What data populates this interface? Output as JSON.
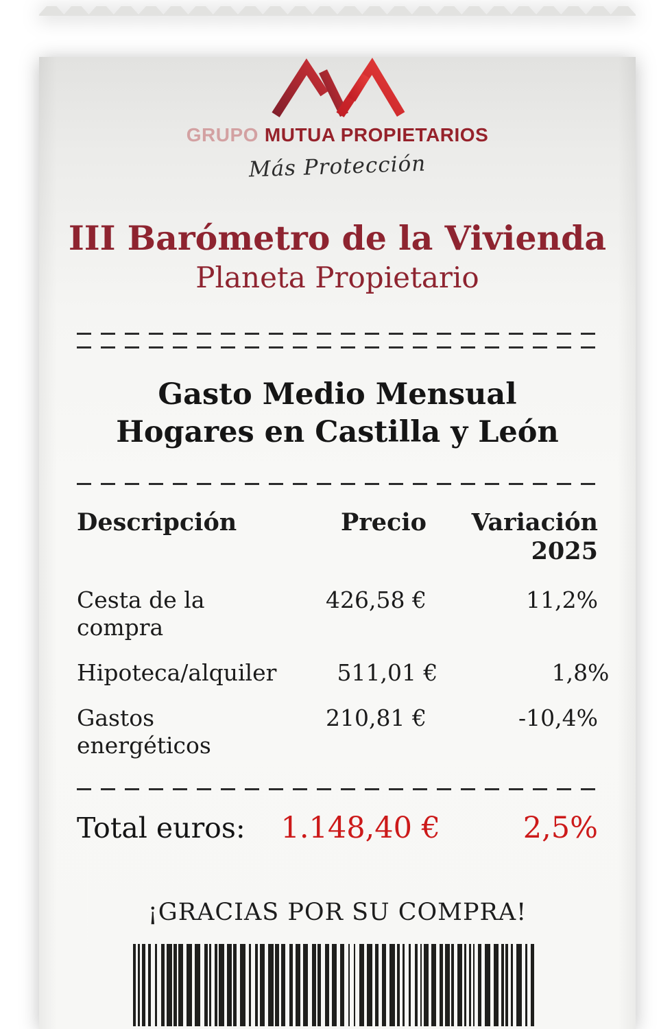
{
  "brand": {
    "grupo": "GRUPO",
    "mutua": "MUTUA PROPIETARIOS",
    "tagline": "Más Protección",
    "colors": {
      "grupo_text": "#d3a1a2",
      "mutua_text": "#96222b",
      "logo_dark_red": "#9a2430",
      "logo_bright_red": "#d8262c"
    }
  },
  "header": {
    "title": "III Barómetro de la Vivienda",
    "subtitle": "Planeta Propietario",
    "title_color": "#8e2430"
  },
  "section": {
    "line1": "Gasto Medio Mensual",
    "line2": "Hogares en Castilla y León"
  },
  "table": {
    "columns": [
      "Descripción",
      "Precio",
      "Variación 2025"
    ],
    "rows": [
      {
        "description": "Cesta de la compra",
        "price": "426,58 €",
        "variation": "11,2%"
      },
      {
        "description": "Hipoteca/alquiler",
        "price": "511,01 €",
        "variation": "1,8%"
      },
      {
        "description": "Gastos energéticos",
        "price": "210,81 €",
        "variation": "-10,4%"
      }
    ],
    "total": {
      "label": "Total euros:",
      "price": "1.148,40 €",
      "variation": "2,5%",
      "accent_color": "#cc1a1a"
    }
  },
  "footer": {
    "thanks": "¡GRACIAS POR SU COMPRA!"
  },
  "paper": {
    "top_color": "#e2e2e0",
    "body_color": "#f7f7f5",
    "ink_color": "#1b1b1b"
  }
}
